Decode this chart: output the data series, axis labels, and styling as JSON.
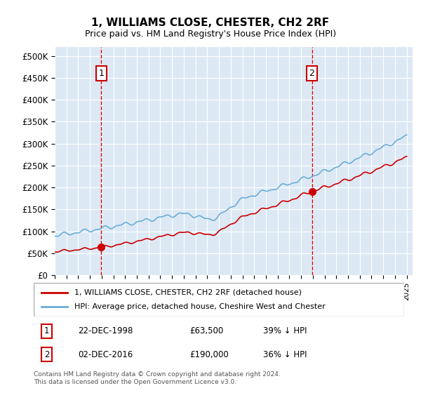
{
  "title": "1, WILLIAMS CLOSE, CHESTER, CH2 2RF",
  "subtitle": "Price paid vs. HM Land Registry's House Price Index (HPI)",
  "ylabel_ticks": [
    "£0",
    "£50K",
    "£100K",
    "£150K",
    "£200K",
    "£250K",
    "£300K",
    "£350K",
    "£400K",
    "£450K",
    "£500K"
  ],
  "ytick_values": [
    0,
    50000,
    100000,
    150000,
    200000,
    250000,
    300000,
    350000,
    400000,
    450000,
    500000
  ],
  "xlim_start": 1995.0,
  "xlim_end": 2025.5,
  "ylim_min": 0,
  "ylim_max": 520000,
  "sale1_date": 1998.96,
  "sale1_price": 63500,
  "sale2_date": 2016.92,
  "sale2_price": 190000,
  "hpi_color": "#6baed6",
  "sale_color": "#cc0000",
  "vline_color": "#cc0000",
  "background_color": "#dce9f5",
  "plot_bg_color": "#dce9f5",
  "legend_label1": "1, WILLIAMS CLOSE, CHESTER, CH2 2RF (detached house)",
  "legend_label2": "HPI: Average price, detached house, Cheshire West and Chester",
  "footnote": "Contains HM Land Registry data © Crown copyright and database right 2024.\nThis data is licensed under the Open Government Licence v3.0.",
  "table_row1": [
    "1",
    "22-DEC-1998",
    "£63,500",
    "39% ↓ HPI"
  ],
  "table_row2": [
    "2",
    "02-DEC-2016",
    "£190,000",
    "36% ↓ HPI"
  ]
}
